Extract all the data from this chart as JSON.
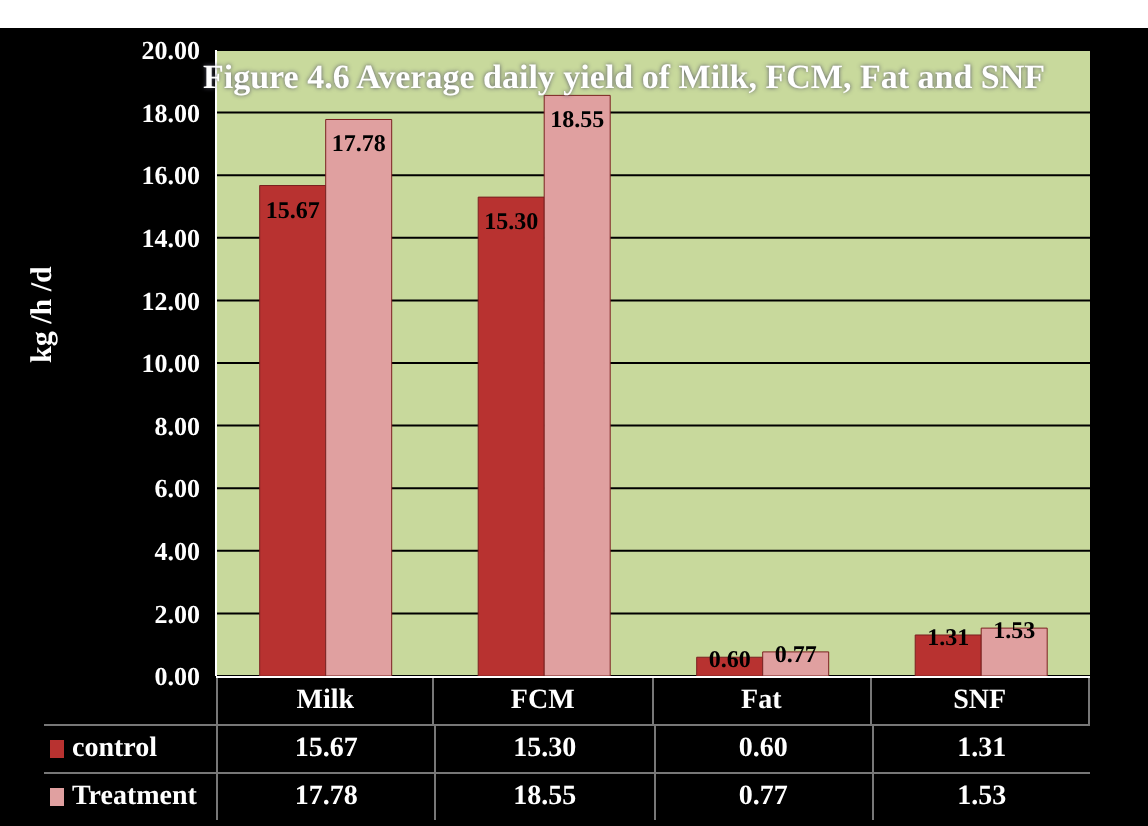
{
  "chart_data": {
    "type": "bar",
    "title": "Figure 4.6   Average daily yield of Milk, FCM, Fat and SNF",
    "ylabel": "kg /h /d",
    "categories": [
      "Milk",
      "FCM",
      "Fat",
      "SNF"
    ],
    "series": [
      {
        "name": "control",
        "color": "#b83230",
        "values": [
          15.67,
          15.3,
          0.6,
          1.31
        ],
        "value_labels": [
          "15.67",
          "15.30",
          "0.60",
          "1.31"
        ]
      },
      {
        "name": "Treatment",
        "color": "#e0a0a0",
        "values": [
          17.78,
          18.55,
          0.77,
          1.53
        ],
        "value_labels": [
          "17.78",
          "18.55",
          "0.77",
          "1.53"
        ]
      }
    ],
    "ylim": [
      0,
      20
    ],
    "yticks": [
      {
        "value": 0,
        "label": "0.00"
      },
      {
        "value": 2,
        "label": "2.00"
      },
      {
        "value": 4,
        "label": "4.00"
      },
      {
        "value": 6,
        "label": "6.00"
      },
      {
        "value": 8,
        "label": "8.00"
      },
      {
        "value": 10,
        "label": "10.00"
      },
      {
        "value": 12,
        "label": "12.00"
      },
      {
        "value": 14,
        "label": "14.00"
      },
      {
        "value": 16,
        "label": "16.00"
      },
      {
        "value": 18,
        "label": "18.00"
      },
      {
        "value": 20,
        "label": "20.00"
      }
    ],
    "grid": "y",
    "legend": "bottom left"
  }
}
